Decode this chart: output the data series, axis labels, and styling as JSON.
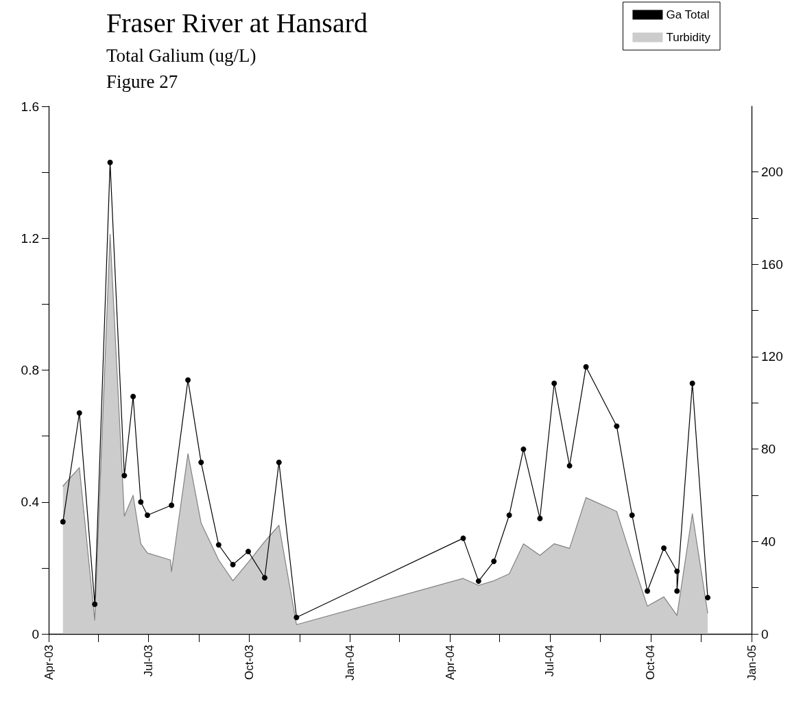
{
  "chart_data": {
    "type": "line",
    "title": "Fraser River at Hansard",
    "subtitle": "Total Galium (ug/L)",
    "annotations": [
      "Figure 27"
    ],
    "legend": "top right",
    "marker": "circle",
    "xlim": [
      "2003-04-01",
      "2005-01-01"
    ],
    "xticks": [
      {
        "value": "2003-04-01",
        "label": "Apr-03"
      },
      {
        "value": "2003-05-16",
        "label": null
      },
      {
        "value": "2003-07-01",
        "label": "Jul-03"
      },
      {
        "value": "2003-08-16",
        "label": null
      },
      {
        "value": "2003-10-01",
        "label": "Oct-03"
      },
      {
        "value": "2003-11-16",
        "label": null
      },
      {
        "value": "2004-01-01",
        "label": "Jan-04"
      },
      {
        "value": "2004-02-15",
        "label": null
      },
      {
        "value": "2004-04-01",
        "label": "Apr-04"
      },
      {
        "value": "2004-05-16",
        "label": null
      },
      {
        "value": "2004-07-01",
        "label": "Jul-04"
      },
      {
        "value": "2004-08-16",
        "label": null
      },
      {
        "value": "2004-10-01",
        "label": "Oct-04"
      },
      {
        "value": "2004-11-16",
        "label": null
      },
      {
        "value": "2005-01-01",
        "label": "Jan-05"
      }
    ],
    "ylim": [
      0,
      1.6
    ],
    "yticks": [
      0,
      {
        "value": 0.2,
        "label": null
      },
      0.4,
      {
        "value": 0.6,
        "label": null
      },
      0.8,
      {
        "value": 1.0,
        "label": null
      },
      1.2,
      {
        "value": 1.4,
        "label": null
      },
      1.6
    ],
    "y2lim": [
      0,
      228.4
    ],
    "y2ticks": [
      0,
      {
        "value": 20,
        "label": null
      },
      40,
      {
        "value": 60,
        "label": null
      },
      80,
      {
        "value": 100,
        "label": null
      },
      120,
      {
        "value": 140,
        "label": null
      },
      160,
      {
        "value": 180,
        "label": null
      },
      200
    ],
    "series": [
      {
        "name": "Turbidity",
        "type": "area",
        "axis": "y2",
        "color": "#cccccc",
        "marker": "none",
        "x": [
          "2003-04-14",
          "2003-04-29",
          "2003-05-13",
          "2003-05-27",
          "2003-06-09",
          "2003-06-17",
          "2003-06-24",
          "2003-06-30",
          "2003-07-21",
          "2003-07-22",
          "2003-08-06",
          "2003-08-18",
          "2003-09-03",
          "2003-09-16",
          "2003-09-30",
          "2003-10-15",
          "2003-10-28",
          "2003-11-13",
          "2004-04-13",
          "2004-04-27",
          "2004-05-11",
          "2004-05-25",
          "2004-06-07",
          "2004-06-22",
          "2004-07-05",
          "2004-07-19",
          "2004-08-03",
          "2004-08-31",
          "2004-09-14",
          "2004-09-28",
          "2004-10-13",
          "2004-10-25",
          "2004-11-08",
          "2004-11-22"
        ],
        "values": [
          64,
          72,
          6,
          173,
          51,
          60,
          39,
          35,
          32,
          27,
          78,
          48,
          32,
          23,
          31,
          40,
          47,
          4,
          24,
          21,
          23,
          26,
          39,
          34,
          39,
          37,
          59,
          53,
          32,
          12,
          16,
          8,
          52,
          9
        ]
      },
      {
        "name": "Ga Total",
        "color": "#000000",
        "x": [
          "2003-04-14",
          "2003-04-29",
          "2003-05-13",
          "2003-05-27",
          "2003-06-09",
          "2003-06-17",
          "2003-06-24",
          "2003-06-30",
          "2003-07-22",
          "2003-08-06",
          "2003-08-18",
          "2003-09-03",
          "2003-09-16",
          "2003-09-30",
          "2003-10-15",
          "2003-10-28",
          "2003-11-13",
          "2004-04-13",
          "2004-04-27",
          "2004-05-11",
          "2004-05-25",
          "2004-06-07",
          "2004-06-22",
          "2004-07-05",
          "2004-07-19",
          "2004-08-03",
          "2004-08-31",
          "2004-09-14",
          "2004-09-28",
          "2004-10-13",
          "2004-10-25",
          "2004-10-25",
          "2004-11-08",
          "2004-11-22"
        ],
        "values": [
          0.34,
          0.67,
          0.09,
          1.43,
          0.48,
          0.72,
          0.4,
          0.36,
          0.39,
          0.77,
          0.52,
          0.27,
          0.21,
          0.25,
          0.17,
          0.52,
          0.05,
          0.29,
          0.16,
          0.22,
          0.36,
          0.56,
          0.35,
          0.76,
          0.51,
          0.81,
          0.63,
          0.36,
          0.13,
          0.26,
          0.19,
          0.13,
          0.76,
          0.11
        ]
      }
    ]
  }
}
